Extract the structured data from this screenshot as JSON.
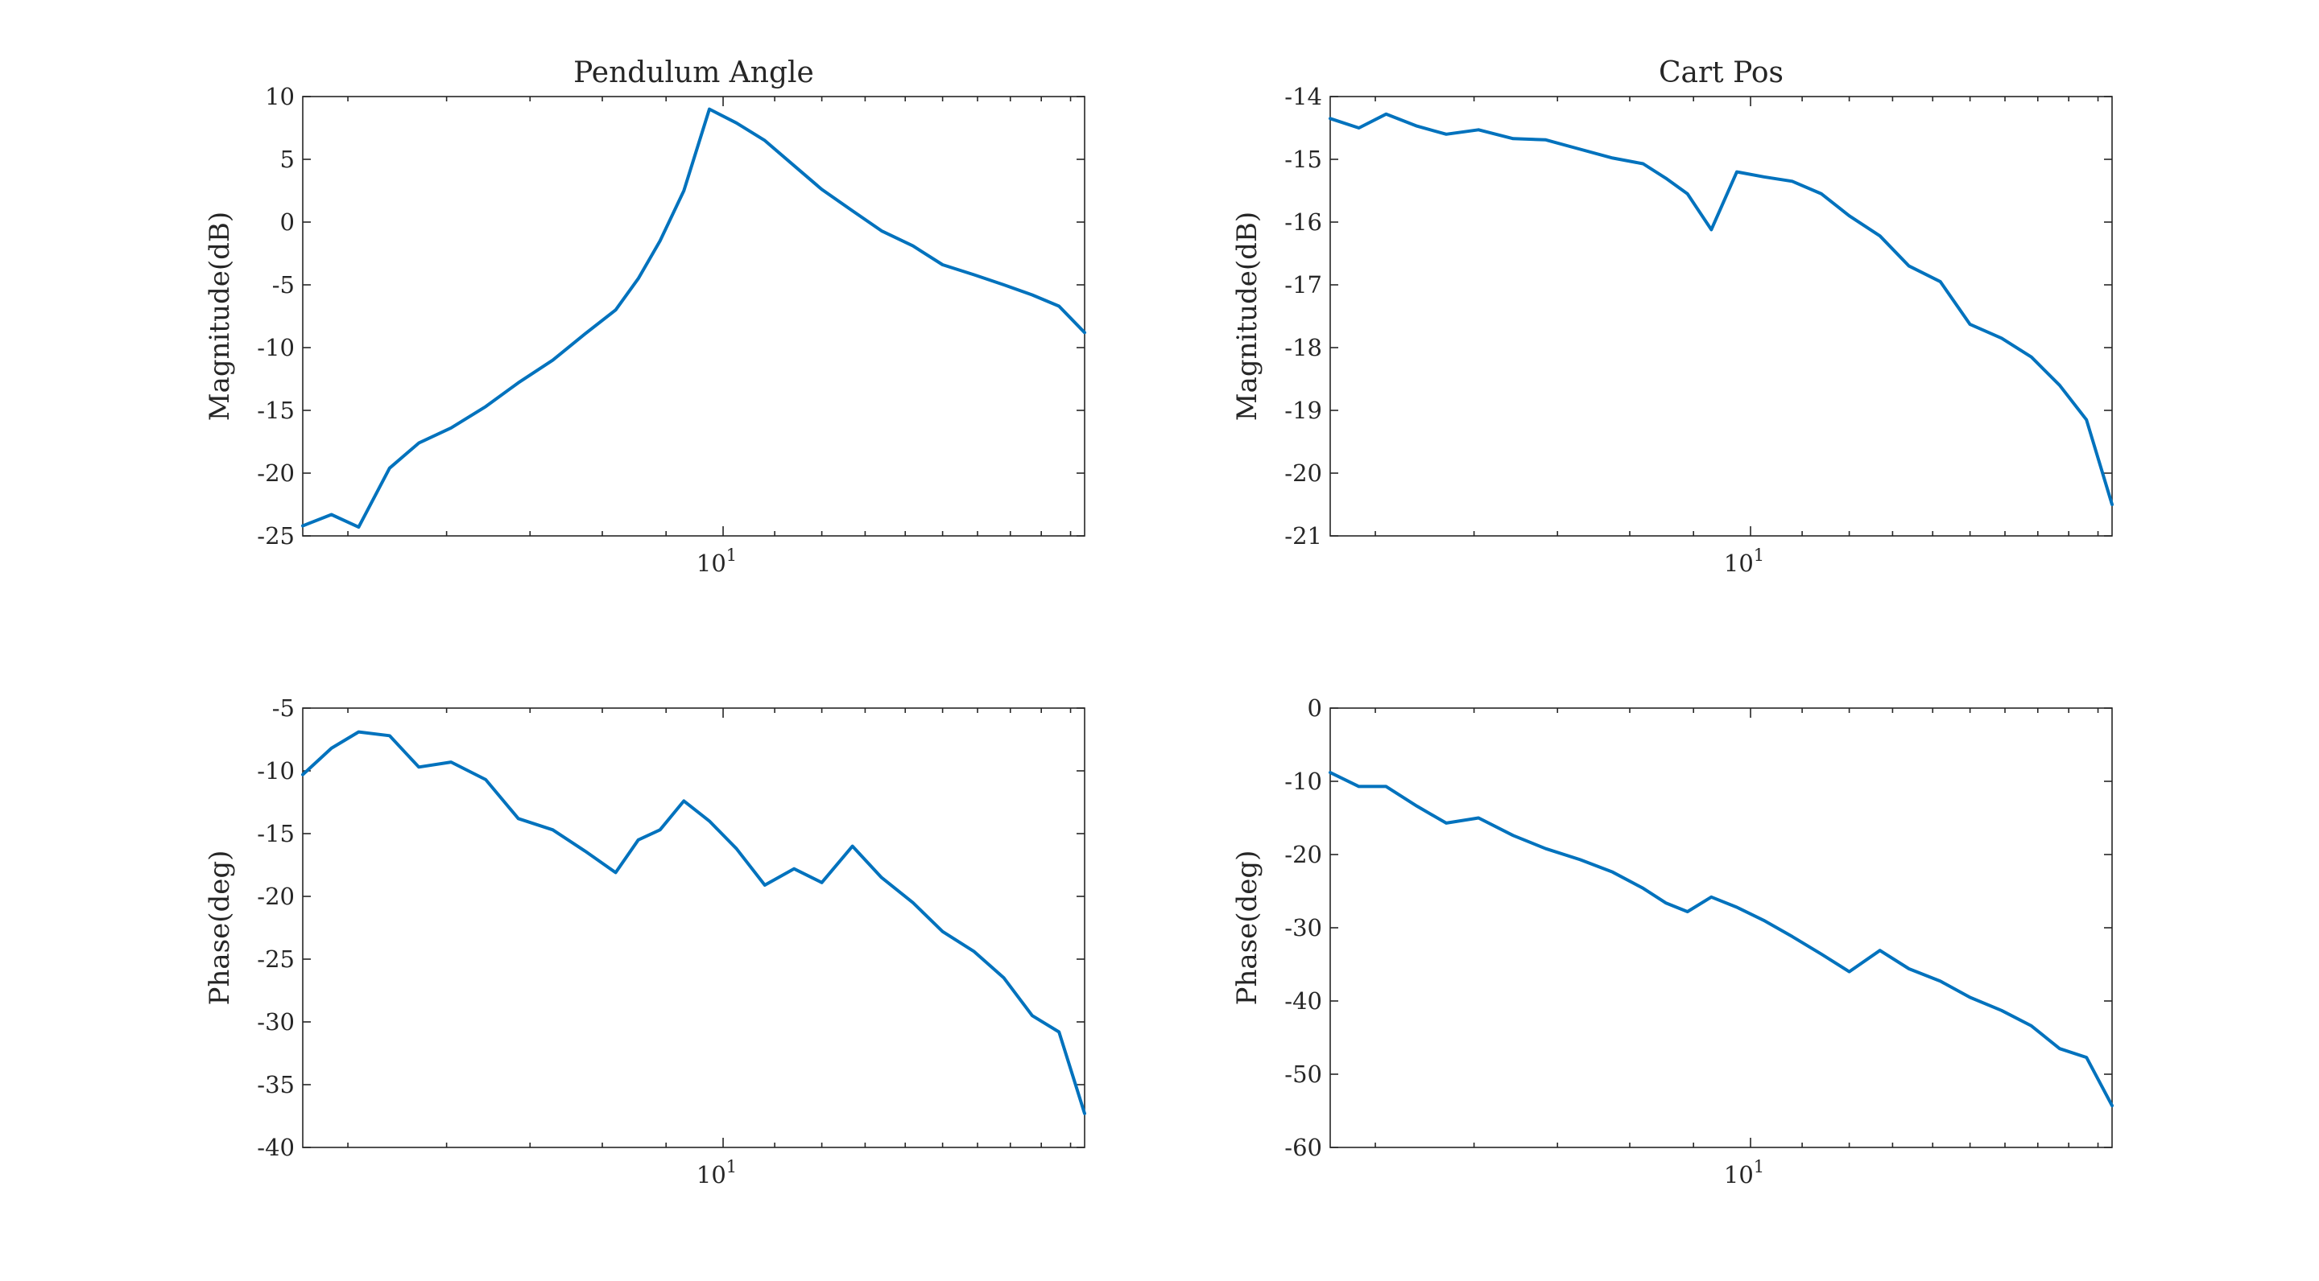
{
  "colors": {
    "series": "#0072BD",
    "axes": "#262626"
  },
  "chart_data": [
    {
      "type": "line",
      "title": "Pendulum Angle",
      "xlabel": "",
      "ylabel": "Magnitude(dB)",
      "xscale": "log",
      "xlim": [
        4.6,
        19.5
      ],
      "ylim": [
        -25,
        10
      ],
      "yticks": [
        "-25",
        "-20",
        "-15",
        "-10",
        "-5",
        "0",
        "5",
        "10"
      ],
      "yticks_values": [
        -25,
        -20,
        -15,
        -10,
        -5,
        0,
        5,
        10
      ],
      "xtick": {
        "value": 10,
        "base": "10",
        "exp": "1"
      },
      "grid": false,
      "series": [
        {
          "x": [
            4.6,
            4.85,
            5.1,
            5.4,
            5.7,
            6.05,
            6.45,
            6.85,
            7.3,
            7.75,
            8.2,
            8.55,
            8.9,
            9.3,
            9.75,
            10.25,
            10.8,
            11.4,
            12.0,
            12.7,
            13.4,
            14.2,
            15.0,
            15.9,
            16.8,
            17.7,
            18.6,
            19.5
          ],
          "y": [
            -24.2,
            -23.3,
            -24.3,
            -19.6,
            -17.6,
            -16.4,
            -14.7,
            -12.8,
            -11.0,
            -8.9,
            -7.0,
            -4.5,
            -1.5,
            2.5,
            9.0,
            7.9,
            6.5,
            4.5,
            2.6,
            0.9,
            -0.7,
            -1.9,
            -3.4,
            -4.2,
            -5.0,
            -5.8,
            -6.7,
            -8.8
          ]
        }
      ]
    },
    {
      "type": "line",
      "title": "Cart Pos",
      "xlabel": "",
      "ylabel": "Magnitude(dB)",
      "xscale": "log",
      "xlim": [
        4.6,
        19.5
      ],
      "ylim": [
        -21,
        -14
      ],
      "yticks": [
        "-21",
        "-20",
        "-19",
        "-18",
        "-17",
        "-16",
        "-15",
        "-14"
      ],
      "yticks_values": [
        -21,
        -20,
        -19,
        -18,
        -17,
        -16,
        -15,
        -14
      ],
      "xtick": {
        "value": 10,
        "base": "10",
        "exp": "1"
      },
      "grid": false,
      "series": [
        {
          "x": [
            4.6,
            4.85,
            5.1,
            5.4,
            5.7,
            6.05,
            6.45,
            6.85,
            7.3,
            7.75,
            8.2,
            8.55,
            8.9,
            9.3,
            9.75,
            10.25,
            10.8,
            11.4,
            12.0,
            12.7,
            13.4,
            14.2,
            15.0,
            15.9,
            16.8,
            17.7,
            18.6,
            19.5
          ],
          "y": [
            -14.35,
            -14.5,
            -14.28,
            -14.47,
            -14.6,
            -14.53,
            -14.67,
            -14.69,
            -14.84,
            -14.98,
            -15.07,
            -15.3,
            -15.55,
            -16.12,
            -15.2,
            -15.28,
            -15.35,
            -15.55,
            -15.9,
            -16.22,
            -16.7,
            -16.95,
            -17.63,
            -17.85,
            -18.15,
            -18.6,
            -19.15,
            -20.5
          ]
        }
      ]
    },
    {
      "type": "line",
      "title": "",
      "xlabel": "",
      "ylabel": "Phase(deg)",
      "xscale": "log",
      "xlim": [
        4.6,
        19.5
      ],
      "ylim": [
        -40,
        -5
      ],
      "yticks": [
        "-40",
        "-35",
        "-30",
        "-25",
        "-20",
        "-15",
        "-10",
        "-5"
      ],
      "yticks_values": [
        -40,
        -35,
        -30,
        -25,
        -20,
        -15,
        -10,
        -5
      ],
      "xtick": {
        "value": 10,
        "base": "10",
        "exp": "1"
      },
      "grid": false,
      "series": [
        {
          "x": [
            4.6,
            4.85,
            5.1,
            5.4,
            5.7,
            6.05,
            6.45,
            6.85,
            7.3,
            7.75,
            8.2,
            8.55,
            8.9,
            9.3,
            9.75,
            10.25,
            10.8,
            11.4,
            12.0,
            12.7,
            13.4,
            14.2,
            15.0,
            15.9,
            16.8,
            17.7,
            18.6,
            19.5
          ],
          "y": [
            -10.3,
            -8.2,
            -6.9,
            -7.2,
            -9.7,
            -9.3,
            -10.7,
            -13.8,
            -14.7,
            -16.4,
            -18.1,
            -15.5,
            -14.7,
            -12.4,
            -14.0,
            -16.2,
            -19.1,
            -17.8,
            -18.9,
            -16.0,
            -18.5,
            -20.5,
            -22.8,
            -24.4,
            -26.5,
            -29.5,
            -30.8,
            -37.3
          ]
        }
      ]
    },
    {
      "type": "line",
      "title": "",
      "xlabel": "",
      "ylabel": "Phase(deg)",
      "xscale": "log",
      "xlim": [
        4.6,
        19.5
      ],
      "ylim": [
        -60,
        0
      ],
      "yticks": [
        "-60",
        "-50",
        "-40",
        "-30",
        "-20",
        "-10",
        "0"
      ],
      "yticks_values": [
        -60,
        -50,
        -40,
        -30,
        -20,
        -10,
        0
      ],
      "xtick": {
        "value": 10,
        "base": "10",
        "exp": "1"
      },
      "grid": false,
      "series": [
        {
          "x": [
            4.6,
            4.85,
            5.1,
            5.4,
            5.7,
            6.05,
            6.45,
            6.85,
            7.3,
            7.75,
            8.2,
            8.55,
            8.9,
            9.3,
            9.75,
            10.25,
            10.8,
            11.4,
            12.0,
            12.7,
            13.4,
            14.2,
            15.0,
            15.9,
            16.8,
            17.7,
            18.6,
            19.5
          ],
          "y": [
            -8.8,
            -10.7,
            -10.7,
            -13.4,
            -15.7,
            -15.0,
            -17.4,
            -19.2,
            -20.7,
            -22.4,
            -24.6,
            -26.6,
            -27.8,
            -25.8,
            -27.2,
            -29.0,
            -31.2,
            -33.6,
            -36.0,
            -33.1,
            -35.6,
            -37.3,
            -39.5,
            -41.3,
            -43.4,
            -46.5,
            -47.7,
            -54.3
          ]
        }
      ]
    }
  ]
}
